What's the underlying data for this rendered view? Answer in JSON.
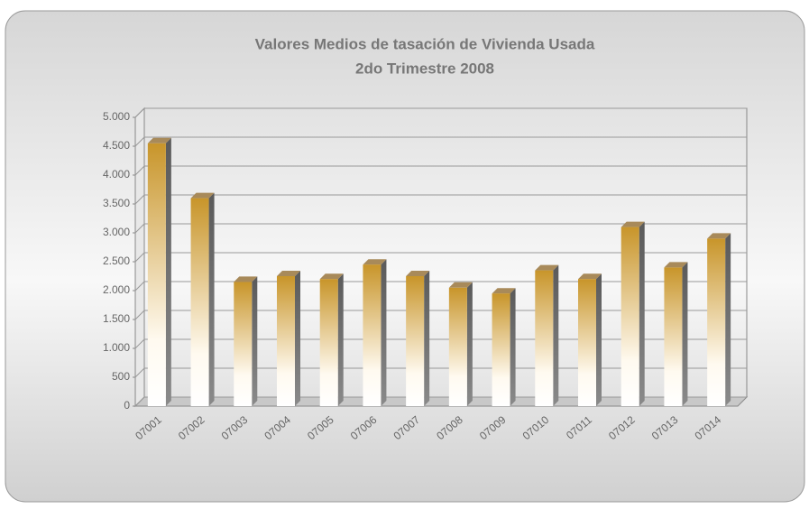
{
  "chart_data": {
    "type": "bar",
    "title": "Valores Medios de tasación de Vivienda Usada",
    "subtitle": "2do Trimestre 2008",
    "categories": [
      "07001",
      "07002",
      "07003",
      "07004",
      "07005",
      "07006",
      "07007",
      "07008",
      "07009",
      "07010",
      "07011",
      "07012",
      "07013",
      "07014"
    ],
    "values": [
      4550,
      3600,
      2150,
      2250,
      2200,
      2450,
      2250,
      2050,
      1950,
      2350,
      2200,
      3100,
      2400,
      2900
    ],
    "color": "#c8952a",
    "ylim": [
      0,
      5000
    ],
    "yticks": [
      0,
      500,
      {
        "value": 1000,
        "label": "1.000"
      },
      {
        "value": 1500,
        "label": "1.500"
      },
      {
        "value": 2000,
        "label": "2.000"
      },
      {
        "value": 2500,
        "label": "2.500"
      },
      {
        "value": 3000,
        "label": "3.000"
      },
      {
        "value": 3500,
        "label": "3.500"
      },
      {
        "value": 4000,
        "label": "4.000"
      },
      {
        "value": 4500,
        "label": "4.500"
      },
      {
        "value": 5000,
        "label": "5.000"
      }
    ],
    "grid": true
  }
}
